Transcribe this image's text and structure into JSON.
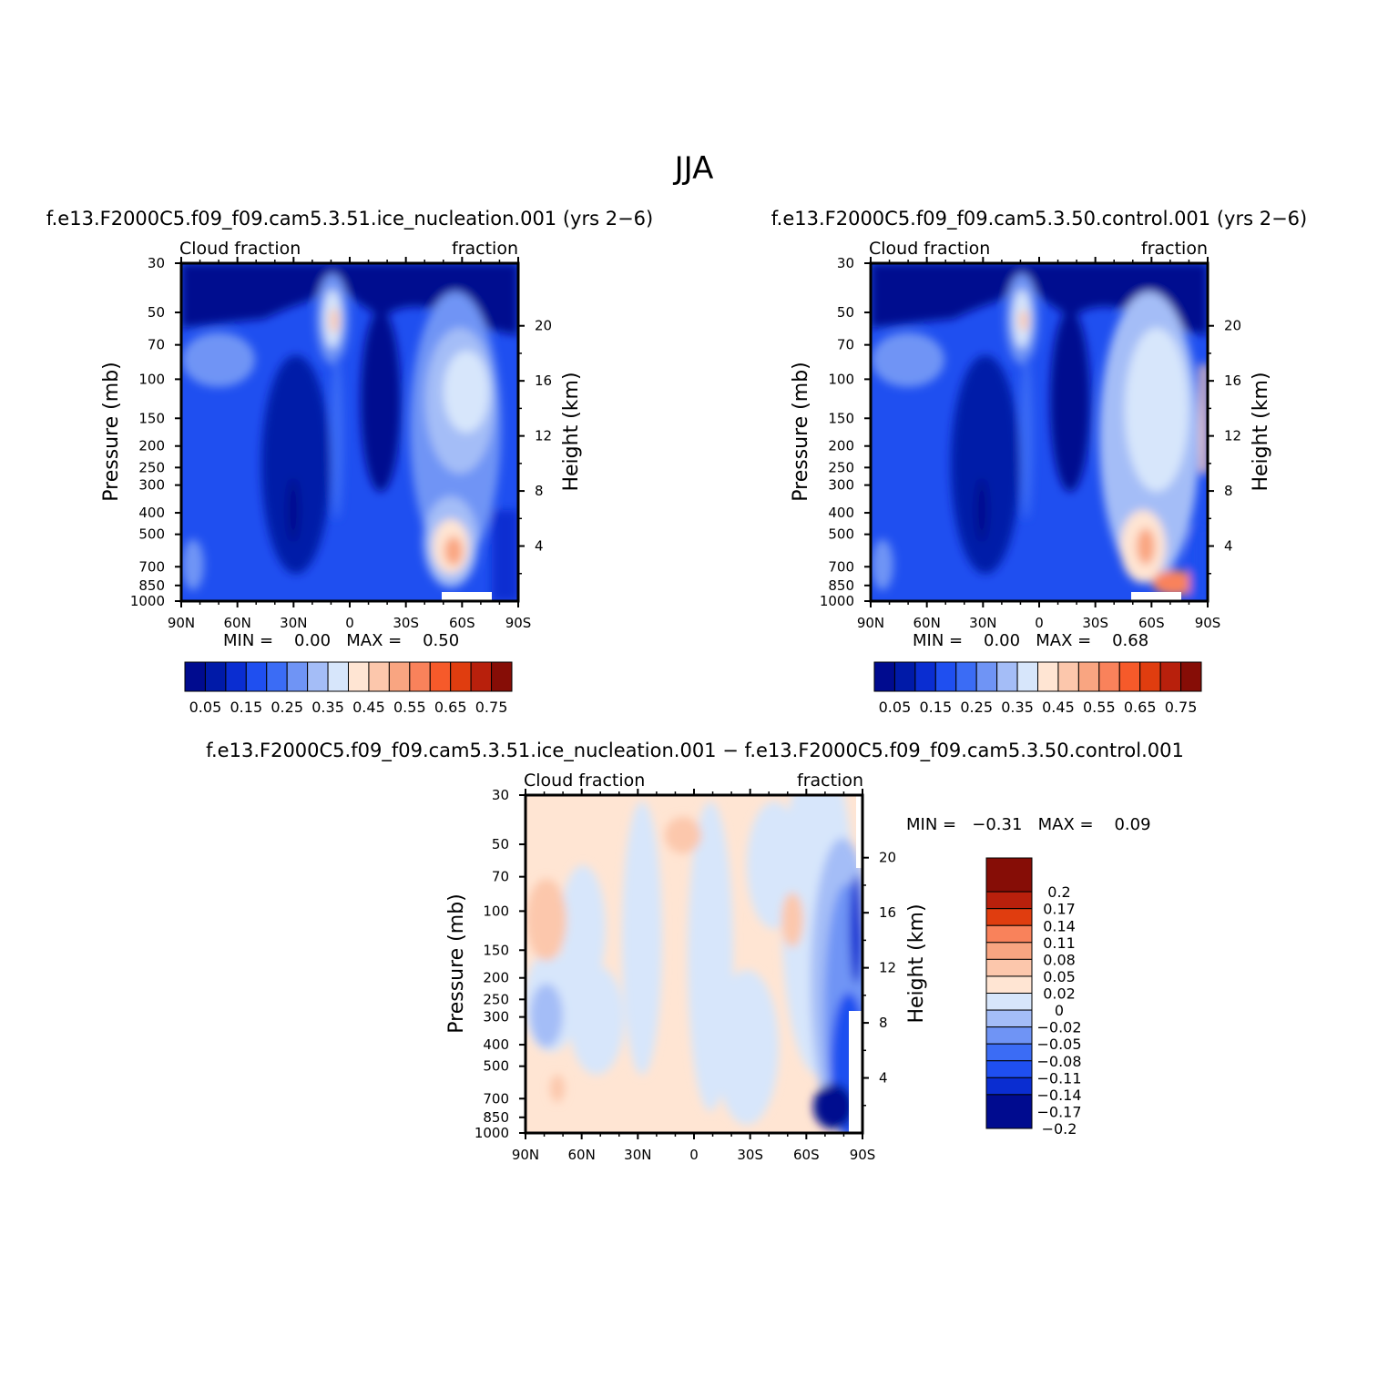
{
  "figure": {
    "title": "JJA"
  },
  "chart_data": [
    {
      "type": "heatmap",
      "id": "panel-ice-nucleation",
      "title": "f.e13.F2000C5.f09_f09.cam5.3.51.ice_nucleation.001 (yrs 2−6)",
      "left_label": "Cloud fraction",
      "right_label": "fraction",
      "xlabel": "",
      "ylabel": "Pressure (mb)",
      "y2label": "Height (km)",
      "x_ticks": [
        "90N",
        "60N",
        "30N",
        "0",
        "30S",
        "60S",
        "90S"
      ],
      "y_ticks": [
        "30",
        "50",
        "70",
        "100",
        "150",
        "200",
        "250",
        "300",
        "400",
        "500",
        "700",
        "850",
        "1000"
      ],
      "y_ticks_values": [
        30,
        50,
        70,
        100,
        150,
        200,
        250,
        300,
        400,
        500,
        700,
        850,
        1000
      ],
      "y2_ticks": [
        "20",
        "16",
        "12",
        "8",
        "4"
      ],
      "y2_ticks_values": [
        20,
        16,
        12,
        8,
        4
      ],
      "xlim": [
        90,
        -90
      ],
      "ylim": [
        1000,
        30
      ],
      "stats": "MIN =    0.00   MAX =    0.50",
      "min": 0.0,
      "max": 0.5,
      "colorbar": "absolute"
    },
    {
      "type": "heatmap",
      "id": "panel-control",
      "title": "f.e13.F2000C5.f09_f09.cam5.3.50.control.001 (yrs 2−6)",
      "left_label": "Cloud fraction",
      "right_label": "fraction",
      "xlabel": "",
      "ylabel": "Pressure (mb)",
      "y2label": "Height (km)",
      "x_ticks": [
        "90N",
        "60N",
        "30N",
        "0",
        "30S",
        "60S",
        "90S"
      ],
      "y_ticks": [
        "30",
        "50",
        "70",
        "100",
        "150",
        "200",
        "250",
        "300",
        "400",
        "500",
        "700",
        "850",
        "1000"
      ],
      "y_ticks_values": [
        30,
        50,
        70,
        100,
        150,
        200,
        250,
        300,
        400,
        500,
        700,
        850,
        1000
      ],
      "y2_ticks": [
        "20",
        "16",
        "12",
        "8",
        "4"
      ],
      "y2_ticks_values": [
        20,
        16,
        12,
        8,
        4
      ],
      "xlim": [
        90,
        -90
      ],
      "ylim": [
        1000,
        30
      ],
      "stats": "MIN =    0.00   MAX =    0.68",
      "min": 0.0,
      "max": 0.68,
      "colorbar": "absolute"
    },
    {
      "type": "heatmap",
      "id": "panel-difference",
      "title": "f.e13.F2000C5.f09_f09.cam5.3.51.ice_nucleation.001 − f.e13.F2000C5.f09_f09.cam5.3.50.control.001",
      "left_label": "Cloud fraction",
      "right_label": "fraction",
      "xlabel": "",
      "ylabel": "Pressure (mb)",
      "y2label": "Height (km)",
      "x_ticks": [
        "90N",
        "60N",
        "30N",
        "0",
        "30S",
        "60S",
        "90S"
      ],
      "y_ticks": [
        "30",
        "50",
        "70",
        "100",
        "150",
        "200",
        "250",
        "300",
        "400",
        "500",
        "700",
        "850",
        "1000"
      ],
      "y_ticks_values": [
        30,
        50,
        70,
        100,
        150,
        200,
        250,
        300,
        400,
        500,
        700,
        850,
        1000
      ],
      "y2_ticks": [
        "20",
        "16",
        "12",
        "8",
        "4"
      ],
      "y2_ticks_values": [
        20,
        16,
        12,
        8,
        4
      ],
      "xlim": [
        90,
        -90
      ],
      "ylim": [
        1000,
        30
      ],
      "stats": "MIN =   −0.31   MAX =    0.09",
      "min": -0.31,
      "max": 0.09,
      "colorbar": "difference"
    }
  ],
  "colorbars": {
    "absolute": {
      "orientation": "horizontal",
      "colors": [
        "#000b8f",
        "#001aa8",
        "#0a2dd1",
        "#1f4ff0",
        "#3b6cf5",
        "#6f94f5",
        "#a4bdf7",
        "#d7e6fb",
        "#ffe5d3",
        "#fcc7ac",
        "#f9a581",
        "#f9825b",
        "#f65a2a",
        "#e03d0f",
        "#b8200c",
        "#860d06"
      ],
      "labels": [
        "0.05",
        "0.15",
        "0.25",
        "0.35",
        "0.45",
        "0.55",
        "0.65",
        "0.75"
      ]
    },
    "difference": {
      "orientation": "vertical",
      "colors": [
        "#860d06",
        "#b8200c",
        "#e03d0f",
        "#f9825b",
        "#f9a581",
        "#fcc7ac",
        "#ffe5d3",
        "#d7e6fb",
        "#a4bdf7",
        "#6f94f5",
        "#3b6cf5",
        "#1f4ff0",
        "#0a2dd1",
        "#000b8f"
      ],
      "labels": [
        "0.2",
        "0.17",
        "0.14",
        "0.11",
        "0.08",
        "0.05",
        "0.02",
        "0",
        "−0.02",
        "−0.05",
        "−0.08",
        "−0.11",
        "−0.14",
        "−0.17",
        "−0.2"
      ]
    }
  },
  "field_colors": {
    "deep": "#000b8f",
    "dark": "#001aa8",
    "blue1": "#0a2dd1",
    "blue2": "#1f4ff0",
    "blue3": "#3b6cf5",
    "blue4": "#6f94f5",
    "pale_blue": "#a4bdf7",
    "lightest_blue": "#d7e6fb",
    "light_peach": "#ffe5d3",
    "peach": "#fcc7ac",
    "salmon": "#f9a581",
    "orange": "#f9825b",
    "red": "#f65a2a"
  }
}
